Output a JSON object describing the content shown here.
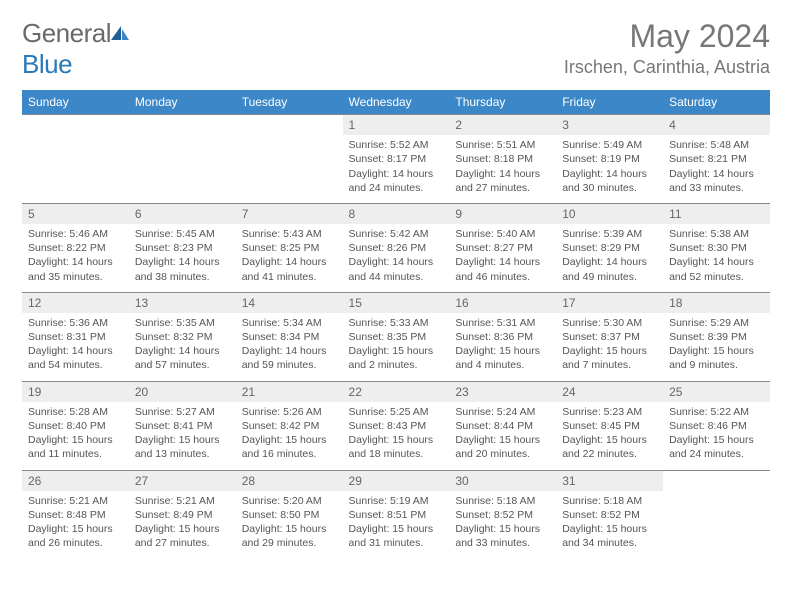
{
  "logo": {
    "text_general": "General",
    "text_blue": "Blue"
  },
  "title": "May 2024",
  "location": "Irschen, Carinthia, Austria",
  "colors": {
    "header_bg": "#3b87c8",
    "header_fg": "#ffffff",
    "daynum_bg": "#eeeeee",
    "text": "#555555",
    "border": "#888888",
    "logo_gray": "#6a6a6a",
    "logo_blue": "#2a7ab8"
  },
  "day_headers": [
    "Sunday",
    "Monday",
    "Tuesday",
    "Wednesday",
    "Thursday",
    "Friday",
    "Saturday"
  ],
  "weeks": [
    [
      null,
      null,
      null,
      {
        "n": "1",
        "sunrise": "5:52 AM",
        "sunset": "8:17 PM",
        "daylight": "14 hours and 24 minutes."
      },
      {
        "n": "2",
        "sunrise": "5:51 AM",
        "sunset": "8:18 PM",
        "daylight": "14 hours and 27 minutes."
      },
      {
        "n": "3",
        "sunrise": "5:49 AM",
        "sunset": "8:19 PM",
        "daylight": "14 hours and 30 minutes."
      },
      {
        "n": "4",
        "sunrise": "5:48 AM",
        "sunset": "8:21 PM",
        "daylight": "14 hours and 33 minutes."
      }
    ],
    [
      {
        "n": "5",
        "sunrise": "5:46 AM",
        "sunset": "8:22 PM",
        "daylight": "14 hours and 35 minutes."
      },
      {
        "n": "6",
        "sunrise": "5:45 AM",
        "sunset": "8:23 PM",
        "daylight": "14 hours and 38 minutes."
      },
      {
        "n": "7",
        "sunrise": "5:43 AM",
        "sunset": "8:25 PM",
        "daylight": "14 hours and 41 minutes."
      },
      {
        "n": "8",
        "sunrise": "5:42 AM",
        "sunset": "8:26 PM",
        "daylight": "14 hours and 44 minutes."
      },
      {
        "n": "9",
        "sunrise": "5:40 AM",
        "sunset": "8:27 PM",
        "daylight": "14 hours and 46 minutes."
      },
      {
        "n": "10",
        "sunrise": "5:39 AM",
        "sunset": "8:29 PM",
        "daylight": "14 hours and 49 minutes."
      },
      {
        "n": "11",
        "sunrise": "5:38 AM",
        "sunset": "8:30 PM",
        "daylight": "14 hours and 52 minutes."
      }
    ],
    [
      {
        "n": "12",
        "sunrise": "5:36 AM",
        "sunset": "8:31 PM",
        "daylight": "14 hours and 54 minutes."
      },
      {
        "n": "13",
        "sunrise": "5:35 AM",
        "sunset": "8:32 PM",
        "daylight": "14 hours and 57 minutes."
      },
      {
        "n": "14",
        "sunrise": "5:34 AM",
        "sunset": "8:34 PM",
        "daylight": "14 hours and 59 minutes."
      },
      {
        "n": "15",
        "sunrise": "5:33 AM",
        "sunset": "8:35 PM",
        "daylight": "15 hours and 2 minutes."
      },
      {
        "n": "16",
        "sunrise": "5:31 AM",
        "sunset": "8:36 PM",
        "daylight": "15 hours and 4 minutes."
      },
      {
        "n": "17",
        "sunrise": "5:30 AM",
        "sunset": "8:37 PM",
        "daylight": "15 hours and 7 minutes."
      },
      {
        "n": "18",
        "sunrise": "5:29 AM",
        "sunset": "8:39 PM",
        "daylight": "15 hours and 9 minutes."
      }
    ],
    [
      {
        "n": "19",
        "sunrise": "5:28 AM",
        "sunset": "8:40 PM",
        "daylight": "15 hours and 11 minutes."
      },
      {
        "n": "20",
        "sunrise": "5:27 AM",
        "sunset": "8:41 PM",
        "daylight": "15 hours and 13 minutes."
      },
      {
        "n": "21",
        "sunrise": "5:26 AM",
        "sunset": "8:42 PM",
        "daylight": "15 hours and 16 minutes."
      },
      {
        "n": "22",
        "sunrise": "5:25 AM",
        "sunset": "8:43 PM",
        "daylight": "15 hours and 18 minutes."
      },
      {
        "n": "23",
        "sunrise": "5:24 AM",
        "sunset": "8:44 PM",
        "daylight": "15 hours and 20 minutes."
      },
      {
        "n": "24",
        "sunrise": "5:23 AM",
        "sunset": "8:45 PM",
        "daylight": "15 hours and 22 minutes."
      },
      {
        "n": "25",
        "sunrise": "5:22 AM",
        "sunset": "8:46 PM",
        "daylight": "15 hours and 24 minutes."
      }
    ],
    [
      {
        "n": "26",
        "sunrise": "5:21 AM",
        "sunset": "8:48 PM",
        "daylight": "15 hours and 26 minutes."
      },
      {
        "n": "27",
        "sunrise": "5:21 AM",
        "sunset": "8:49 PM",
        "daylight": "15 hours and 27 minutes."
      },
      {
        "n": "28",
        "sunrise": "5:20 AM",
        "sunset": "8:50 PM",
        "daylight": "15 hours and 29 minutes."
      },
      {
        "n": "29",
        "sunrise": "5:19 AM",
        "sunset": "8:51 PM",
        "daylight": "15 hours and 31 minutes."
      },
      {
        "n": "30",
        "sunrise": "5:18 AM",
        "sunset": "8:52 PM",
        "daylight": "15 hours and 33 minutes."
      },
      {
        "n": "31",
        "sunrise": "5:18 AM",
        "sunset": "8:52 PM",
        "daylight": "15 hours and 34 minutes."
      },
      null
    ]
  ],
  "labels": {
    "sunrise": "Sunrise: ",
    "sunset": "Sunset: ",
    "daylight": "Daylight: "
  }
}
